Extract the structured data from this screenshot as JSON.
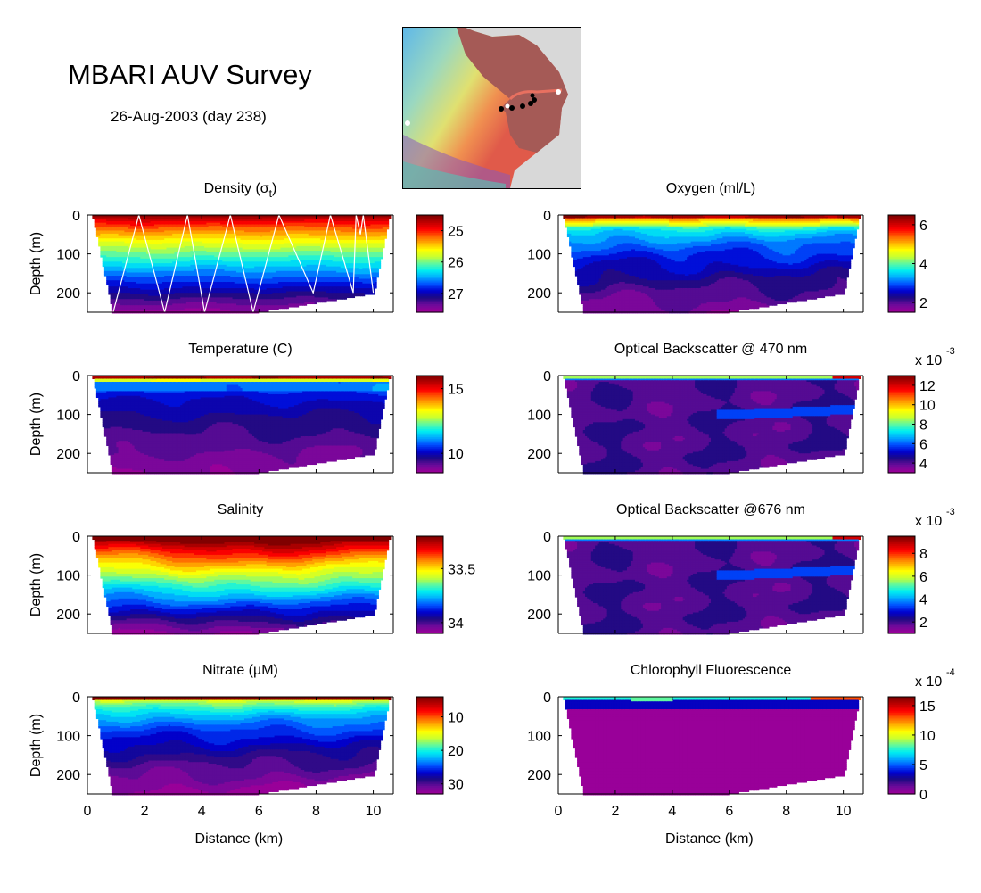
{
  "header": {
    "title": "MBARI AUV Survey",
    "subtitle": "26-Aug-2003 (day 238)"
  },
  "map": {
    "description": "Bathymetry map with AUV track stations",
    "station_count_black": 6,
    "station_count_white": 3
  },
  "colormap": [
    "#990099",
    "#6a0b9a",
    "#1c0a82",
    "#0000d0",
    "#0050ff",
    "#00aaff",
    "#00f0f0",
    "#60f8a0",
    "#c8ff30",
    "#ffff00",
    "#ffb000",
    "#ff6000",
    "#ff0000",
    "#c00000",
    "#800000"
  ],
  "chart_data": [
    {
      "type": "heatmap",
      "id": "density",
      "title": "Density (σt)",
      "title_main": "Density (σ",
      "title_sub": "t",
      "title_end": ")",
      "xlabel": "",
      "ylabel": "Depth (m)",
      "xlim": [
        0,
        10.7
      ],
      "ylim": [
        250,
        0
      ],
      "xticks": [
        0,
        2,
        4,
        6,
        8,
        10
      ],
      "yticks": [
        0,
        100,
        200
      ],
      "colorbar": {
        "ticks": [
          25,
          26,
          27
        ],
        "range": [
          27.6,
          24.5
        ],
        "reversed": true,
        "exponent": ""
      },
      "pattern": "layered",
      "surface_value": 24.6,
      "bottom_value": 27.5,
      "show_track": true,
      "track_points": [
        [
          0.9,
          250
        ],
        [
          1.8,
          0
        ],
        [
          2.7,
          250
        ],
        [
          3.5,
          0
        ],
        [
          4.1,
          250
        ],
        [
          5.0,
          0
        ],
        [
          5.8,
          250
        ],
        [
          6.7,
          0
        ],
        [
          7.9,
          200
        ],
        [
          8.5,
          0
        ],
        [
          9.3,
          200
        ],
        [
          9.4,
          0
        ],
        [
          9.55,
          50
        ],
        [
          9.65,
          0
        ],
        [
          10.0,
          200
        ]
      ]
    },
    {
      "type": "heatmap",
      "id": "oxygen",
      "title": "Oxygen (ml/L)",
      "xlabel": "",
      "ylabel": "",
      "xlim": [
        0,
        10.7
      ],
      "ylim": [
        250,
        0
      ],
      "xticks": [
        0,
        2,
        4,
        6,
        8,
        10
      ],
      "yticks": [
        0,
        100,
        200
      ],
      "colorbar": {
        "ticks": [
          2,
          4,
          6
        ],
        "range": [
          1.5,
          6.5
        ],
        "reversed": false,
        "exponent": ""
      },
      "pattern": "oxygen",
      "surface_value": 6.3,
      "bottom_value": 1.7
    },
    {
      "type": "heatmap",
      "id": "temperature",
      "title": "Temperature (C)",
      "xlabel": "",
      "ylabel": "Depth (m)",
      "xlim": [
        0,
        10.7
      ],
      "ylim": [
        250,
        0
      ],
      "xticks": [
        0,
        2,
        4,
        6,
        8,
        10
      ],
      "yticks": [
        0,
        100,
        200
      ],
      "colorbar": {
        "ticks": [
          10,
          15
        ],
        "range": [
          8.5,
          16
        ],
        "reversed": false,
        "exponent": ""
      },
      "pattern": "surface_spike",
      "surface_value": 15.5,
      "bottom_value": 8.6
    },
    {
      "type": "heatmap",
      "id": "backscatter-470",
      "title": "Optical Backscatter @ 470 nm",
      "xlabel": "",
      "ylabel": "",
      "xlim": [
        0,
        10.7
      ],
      "ylim": [
        250,
        0
      ],
      "xticks": [
        0,
        2,
        4,
        6,
        8,
        10
      ],
      "yticks": [
        0,
        100,
        200
      ],
      "colorbar": {
        "ticks": [
          4,
          6,
          8,
          10,
          12
        ],
        "range": [
          3,
          13
        ],
        "reversed": false,
        "exponent": "x 10",
        "exponent_power": "-3"
      },
      "pattern": "backscatter",
      "surface_value": 8,
      "bottom_value": 3.5
    },
    {
      "type": "heatmap",
      "id": "salinity",
      "title": "Salinity",
      "xlabel": "",
      "ylabel": "Depth (m)",
      "xlim": [
        0,
        10.7
      ],
      "ylim": [
        250,
        0
      ],
      "xticks": [
        0,
        2,
        4,
        6,
        8,
        10
      ],
      "yticks": [
        0,
        100,
        200
      ],
      "colorbar": {
        "ticks": [
          33.5,
          34
        ],
        "range": [
          34.1,
          33.2
        ],
        "reversed": true,
        "exponent": ""
      },
      "pattern": "bowl",
      "surface_value": 33.25,
      "bottom_value": 34.05
    },
    {
      "type": "heatmap",
      "id": "backscatter-676",
      "title": "Optical Backscatter @676 nm",
      "xlabel": "",
      "ylabel": "",
      "xlim": [
        0,
        10.7
      ],
      "ylim": [
        250,
        0
      ],
      "xticks": [
        0,
        2,
        4,
        6,
        8,
        10
      ],
      "yticks": [
        0,
        100,
        200
      ],
      "colorbar": {
        "ticks": [
          2,
          4,
          6,
          8
        ],
        "range": [
          1,
          9.5
        ],
        "reversed": false,
        "exponent": "x 10",
        "exponent_power": "-3"
      },
      "pattern": "backscatter",
      "surface_value": 6,
      "bottom_value": 1.5
    },
    {
      "type": "heatmap",
      "id": "nitrate",
      "title": "Nitrate (µM)",
      "xlabel": "Distance (km)",
      "ylabel": "Depth (m)",
      "xlim": [
        0,
        10.7
      ],
      "ylim": [
        250,
        0
      ],
      "xticks": [
        0,
        2,
        4,
        6,
        8,
        10
      ],
      "yticks": [
        0,
        100,
        200
      ],
      "colorbar": {
        "ticks": [
          10,
          20,
          30
        ],
        "range": [
          33,
          4
        ],
        "reversed": true,
        "exponent": ""
      },
      "pattern": "layered_deep",
      "surface_value": 5,
      "bottom_value": 32
    },
    {
      "type": "heatmap",
      "id": "chlorophyll",
      "title": "Chlorophyll Fluorescence",
      "xlabel": "Distance (km)",
      "ylabel": "",
      "xlim": [
        0,
        10.7
      ],
      "ylim": [
        250,
        0
      ],
      "xticks": [
        0,
        2,
        4,
        6,
        8,
        10
      ],
      "yticks": [
        0,
        100,
        200
      ],
      "colorbar": {
        "ticks": [
          0,
          5,
          10,
          15
        ],
        "range": [
          0,
          16.5
        ],
        "reversed": false,
        "exponent": "x 10",
        "exponent_power": "-4"
      },
      "pattern": "chl",
      "surface_value": 8,
      "bottom_value": 0
    }
  ]
}
